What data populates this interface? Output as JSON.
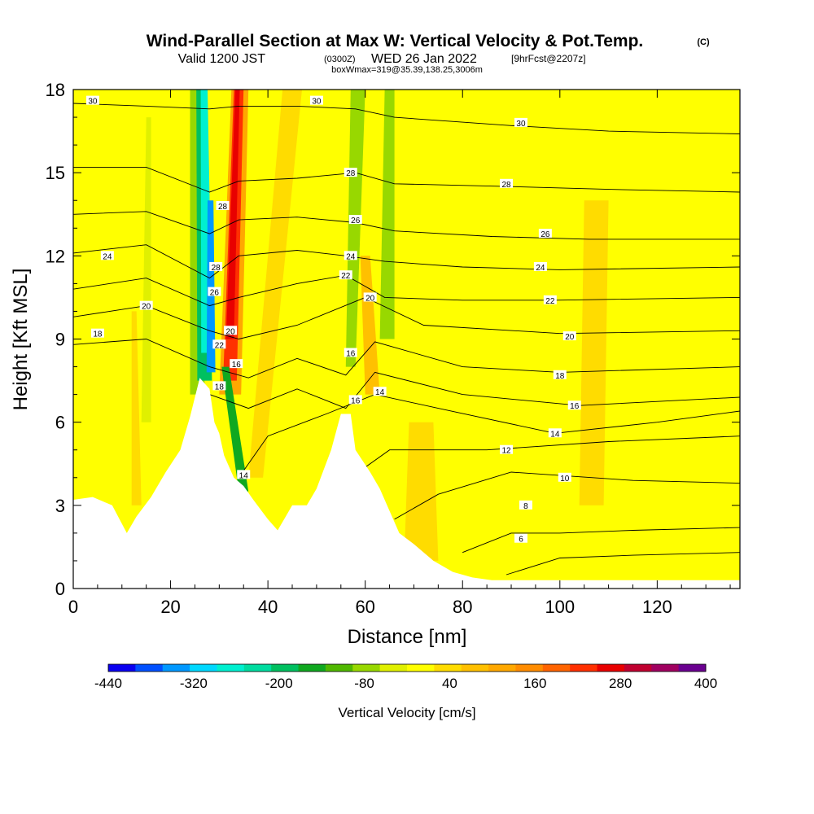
{
  "header": {
    "title": "Wind-Parallel Section at Max W: Vertical Velocity & Pot.Temp.",
    "title_tag": "(C)",
    "subtitle_valid": "Valid 1200 JST",
    "subtitle_z": "(0300Z)",
    "subtitle_date": "WED 26 Jan 2022",
    "subtitle_fcst": "[9hrFcst@2207z]",
    "subtitle2": "boxWmax=319@35.39,138.25,3006m"
  },
  "chart_data": {
    "type": "heatmap",
    "xlabel": "Distance [nm]",
    "ylabel": "Height [Kft MSL]",
    "xlim": [
      0,
      137
    ],
    "ylim": [
      0,
      18
    ],
    "x_ticks": [
      0,
      20,
      40,
      60,
      80,
      100,
      120
    ],
    "y_ticks": [
      0,
      3,
      6,
      9,
      12,
      15,
      18
    ],
    "grid": false,
    "colorbar": {
      "label": "Vertical Velocity [cm/s]",
      "tick_labels": [
        "-440",
        "-320",
        "-200",
        "-80",
        "40",
        "160",
        "280",
        "400"
      ],
      "levels": [
        -440,
        -400,
        -360,
        -320,
        -280,
        -240,
        -200,
        -160,
        -120,
        -80,
        -40,
        0,
        40,
        80,
        120,
        160,
        200,
        240,
        280,
        320,
        360,
        400
      ],
      "colors": [
        "#0a00f0",
        "#0050ff",
        "#0098ff",
        "#00d8ff",
        "#00f0d0",
        "#00dca0",
        "#00c060",
        "#10a820",
        "#50b800",
        "#98d800",
        "#e0f000",
        "#ffff00",
        "#ffdc00",
        "#ffc000",
        "#ffa800",
        "#ff8c00",
        "#ff6400",
        "#ff3000",
        "#e80000",
        "#c00030",
        "#a00060",
        "#6a0090"
      ]
    },
    "terrain": [
      [
        0,
        3.2
      ],
      [
        4,
        3.3
      ],
      [
        8,
        3.0
      ],
      [
        11,
        2.0
      ],
      [
        13,
        2.6
      ],
      [
        16,
        3.3
      ],
      [
        19,
        4.2
      ],
      [
        22,
        5.0
      ],
      [
        24,
        6.2
      ],
      [
        26,
        7.6
      ],
      [
        28,
        7.2
      ],
      [
        29,
        6.0
      ],
      [
        30,
        5.6
      ],
      [
        31,
        4.8
      ],
      [
        33,
        4.0
      ],
      [
        35,
        3.7
      ],
      [
        37,
        3.2
      ],
      [
        40,
        2.5
      ],
      [
        42,
        2.1
      ],
      [
        43,
        2.4
      ],
      [
        45,
        3.0
      ],
      [
        48,
        3.0
      ],
      [
        50,
        3.6
      ],
      [
        53,
        5.0
      ],
      [
        55,
        6.3
      ],
      [
        57,
        6.3
      ],
      [
        58,
        5.0
      ],
      [
        61,
        4.2
      ],
      [
        63,
        3.6
      ],
      [
        67,
        2.0
      ],
      [
        70,
        1.6
      ],
      [
        74,
        1.0
      ],
      [
        78,
        0.6
      ],
      [
        82,
        0.4
      ],
      [
        86,
        0.3
      ],
      [
        88,
        0.3
      ],
      [
        137,
        0.3
      ]
    ],
    "theta_contours": [
      {
        "value": 6,
        "points": [
          [
            89,
            0.5
          ],
          [
            100,
            1.1
          ],
          [
            115,
            1.2
          ],
          [
            137,
            1.3
          ]
        ]
      },
      {
        "value": 8,
        "points": [
          [
            80,
            1.3
          ],
          [
            90,
            2.0
          ],
          [
            100,
            2.0
          ],
          [
            115,
            2.1
          ],
          [
            137,
            2.2
          ]
        ]
      },
      {
        "value": 10,
        "points": [
          [
            66,
            2.5
          ],
          [
            75,
            3.4
          ],
          [
            90,
            4.2
          ],
          [
            115,
            3.9
          ],
          [
            137,
            3.8
          ]
        ]
      },
      {
        "value": 12,
        "points": [
          [
            57,
            4.0
          ],
          [
            65,
            5.0
          ],
          [
            85,
            5.0
          ],
          [
            110,
            5.3
          ],
          [
            137,
            5.5
          ]
        ]
      },
      {
        "value": 14,
        "points": [
          [
            34,
            4.0
          ],
          [
            40,
            5.5
          ],
          [
            52,
            6.3
          ],
          [
            62,
            7.0
          ],
          [
            75,
            6.5
          ],
          [
            99,
            5.6
          ],
          [
            120,
            6.0
          ],
          [
            137,
            6.4
          ]
        ]
      },
      {
        "value": 16,
        "points": [
          [
            28,
            7.0
          ],
          [
            36,
            6.5
          ],
          [
            46,
            7.2
          ],
          [
            56,
            6.5
          ],
          [
            62,
            7.8
          ],
          [
            80,
            7.0
          ],
          [
            104,
            6.6
          ],
          [
            137,
            6.9
          ]
        ]
      },
      {
        "value": 18,
        "points": [
          [
            0,
            8.8
          ],
          [
            15,
            9.0
          ],
          [
            28,
            8.0
          ],
          [
            36,
            7.6
          ],
          [
            46,
            8.3
          ],
          [
            56,
            7.7
          ],
          [
            62,
            8.9
          ],
          [
            80,
            8.0
          ],
          [
            100,
            7.8
          ],
          [
            137,
            8.0
          ]
        ]
      },
      {
        "value": 20,
        "points": [
          [
            0,
            9.8
          ],
          [
            15,
            10.2
          ],
          [
            28,
            9.3
          ],
          [
            34,
            9.0
          ],
          [
            46,
            9.5
          ],
          [
            60,
            10.5
          ],
          [
            72,
            9.5
          ],
          [
            100,
            9.2
          ],
          [
            137,
            9.3
          ]
        ]
      },
      {
        "value": 22,
        "points": [
          [
            0,
            10.8
          ],
          [
            15,
            11.2
          ],
          [
            28,
            10.2
          ],
          [
            34,
            10.5
          ],
          [
            46,
            11.0
          ],
          [
            56,
            11.3
          ],
          [
            64,
            10.5
          ],
          [
            80,
            10.4
          ],
          [
            99,
            10.4
          ],
          [
            137,
            10.5
          ]
        ]
      },
      {
        "value": 24,
        "points": [
          [
            0,
            12.1
          ],
          [
            15,
            12.4
          ],
          [
            28,
            11.2
          ],
          [
            34,
            12.0
          ],
          [
            46,
            12.2
          ],
          [
            56,
            12.0
          ],
          [
            64,
            11.8
          ],
          [
            80,
            11.6
          ],
          [
            100,
            11.5
          ],
          [
            137,
            11.6
          ]
        ]
      },
      {
        "value": 26,
        "points": [
          [
            0,
            13.5
          ],
          [
            15,
            13.6
          ],
          [
            28,
            12.8
          ],
          [
            34,
            13.3
          ],
          [
            46,
            13.4
          ],
          [
            58,
            13.2
          ],
          [
            66,
            12.9
          ],
          [
            86,
            12.7
          ],
          [
            106,
            12.6
          ],
          [
            137,
            12.6
          ]
        ]
      },
      {
        "value": 28,
        "points": [
          [
            0,
            15.2
          ],
          [
            15,
            15.2
          ],
          [
            28,
            14.3
          ],
          [
            34,
            14.7
          ],
          [
            46,
            14.8
          ],
          [
            58,
            15.0
          ],
          [
            66,
            14.6
          ],
          [
            90,
            14.5
          ],
          [
            110,
            14.4
          ],
          [
            137,
            14.3
          ]
        ]
      },
      {
        "value": 30,
        "points": [
          [
            0,
            17.5
          ],
          [
            15,
            17.4
          ],
          [
            28,
            17.3
          ],
          [
            34,
            17.4
          ],
          [
            46,
            17.4
          ],
          [
            58,
            17.3
          ],
          [
            66,
            17.0
          ],
          [
            90,
            16.7
          ],
          [
            110,
            16.5
          ],
          [
            137,
            16.4
          ]
        ]
      }
    ],
    "theta_labels": [
      {
        "text": "30",
        "x": 4,
        "y": 17.6
      },
      {
        "text": "30",
        "x": 50,
        "y": 17.6
      },
      {
        "text": "30",
        "x": 92,
        "y": 16.8
      },
      {
        "text": "28",
        "x": 57,
        "y": 15.0
      },
      {
        "text": "28",
        "x": 89,
        "y": 14.6
      },
      {
        "text": "28",
        "x": 30.7,
        "y": 13.8
      },
      {
        "text": "26",
        "x": 58,
        "y": 13.3
      },
      {
        "text": "26",
        "x": 97,
        "y": 12.8
      },
      {
        "text": "24",
        "x": 7,
        "y": 12.0
      },
      {
        "text": "24",
        "x": 57,
        "y": 12.0
      },
      {
        "text": "24",
        "x": 96,
        "y": 11.6
      },
      {
        "text": "22",
        "x": 56,
        "y": 11.3
      },
      {
        "text": "22",
        "x": 98,
        "y": 10.4
      },
      {
        "text": "20",
        "x": 15,
        "y": 10.2
      },
      {
        "text": "20",
        "x": 61,
        "y": 10.5
      },
      {
        "text": "20",
        "x": 102,
        "y": 9.1
      },
      {
        "text": "18",
        "x": 5,
        "y": 9.2
      },
      {
        "text": "18",
        "x": 100,
        "y": 7.7
      },
      {
        "text": "16",
        "x": 57,
        "y": 8.5
      },
      {
        "text": "16",
        "x": 58,
        "y": 6.8
      },
      {
        "text": "16",
        "x": 103,
        "y": 6.6
      },
      {
        "text": "14",
        "x": 63,
        "y": 7.1
      },
      {
        "text": "14",
        "x": 99,
        "y": 5.6
      },
      {
        "text": "14",
        "x": 35,
        "y": 4.1
      },
      {
        "text": "12",
        "x": 89,
        "y": 5.0
      },
      {
        "text": "10",
        "x": 101,
        "y": 4.0
      },
      {
        "text": "8",
        "x": 93,
        "y": 3.0
      },
      {
        "text": "6",
        "x": 92,
        "y": 1.8
      },
      {
        "text": "28",
        "x": 29.3,
        "y": 11.6
      },
      {
        "text": "26",
        "x": 29.0,
        "y": 10.7
      },
      {
        "text": "22",
        "x": 30.0,
        "y": 8.8
      },
      {
        "text": "20",
        "x": 32.3,
        "y": 9.3
      },
      {
        "text": "16",
        "x": 33.5,
        "y": 8.1
      },
      {
        "text": "18",
        "x": 30.0,
        "y": 7.3
      }
    ]
  }
}
